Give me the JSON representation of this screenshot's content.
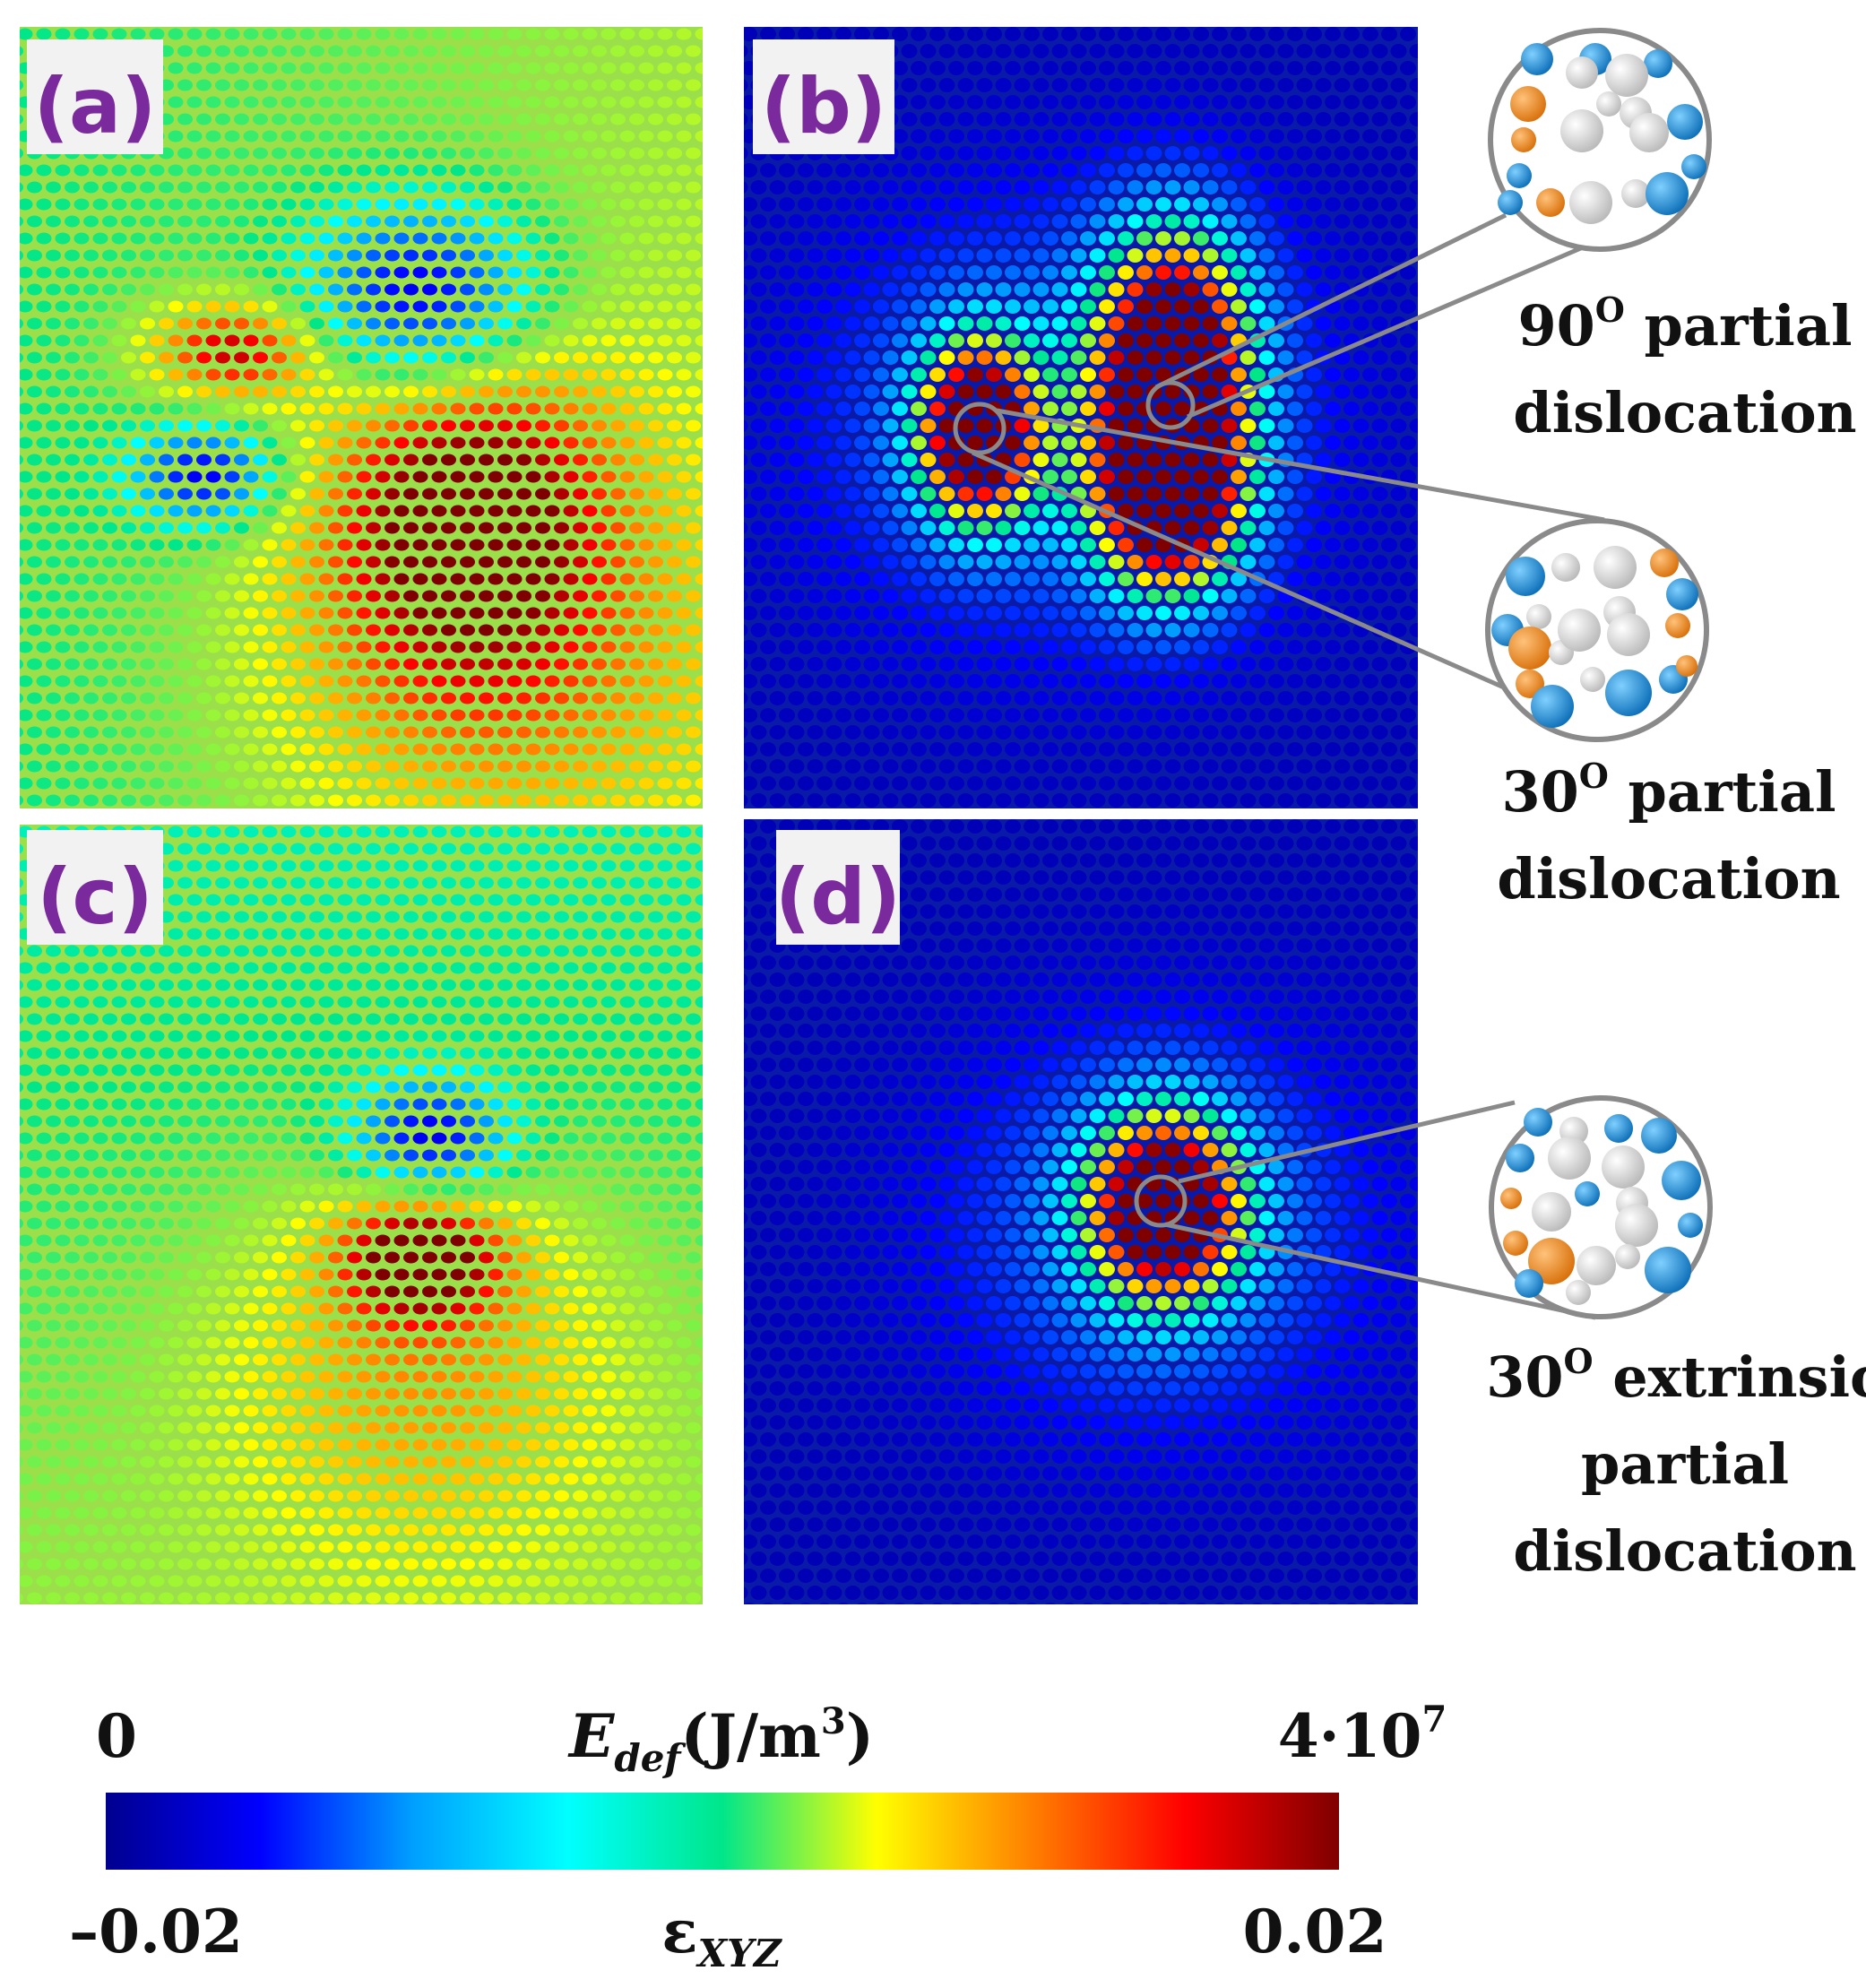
{
  "panels": [
    {
      "id": "a",
      "label": "(a)",
      "map": "strain-two-partials"
    },
    {
      "id": "b",
      "label": "(b)",
      "map": "energy-two-partials"
    },
    {
      "id": "c",
      "label": "(c)",
      "map": "strain-extrinsic"
    },
    {
      "id": "d",
      "label": "(d)",
      "map": "energy-extrinsic"
    }
  ],
  "annotations": [
    {
      "lines": [
        "90",
        "partial",
        "dislocation"
      ],
      "sup": "O"
    },
    {
      "lines": [
        "30",
        "partial",
        "dislocation"
      ],
      "sup": "O"
    },
    {
      "lines": [
        "30",
        "extrinsic",
        "partial",
        "dislocation"
      ],
      "sup": "O"
    }
  ],
  "colorbar": {
    "top_min": "0",
    "top_max_base": "4·10",
    "top_max_exp": "7",
    "top_title_sym": "E",
    "top_title_sub": "def",
    "top_title_unit": "(J/m",
    "top_title_unit_exp": "3",
    "top_title_close": ")",
    "bottom_min": "–0.02",
    "bottom_max": "0.02",
    "bottom_title_sym": "ε",
    "bottom_title_sub": "XYZ",
    "stops": [
      "#00008f",
      "#0000ff",
      "#00a0ff",
      "#00ffff",
      "#00e68a",
      "#ffff00",
      "#ff8000",
      "#ff0000",
      "#7f0000"
    ]
  },
  "colors": {
    "label_purple": "#7a2a9c",
    "blue_atom": "#1a8fd8",
    "orange_atom": "#f08c1c",
    "grey_atom": "#d9d9d9",
    "leader_line": "#8a8a8a"
  }
}
